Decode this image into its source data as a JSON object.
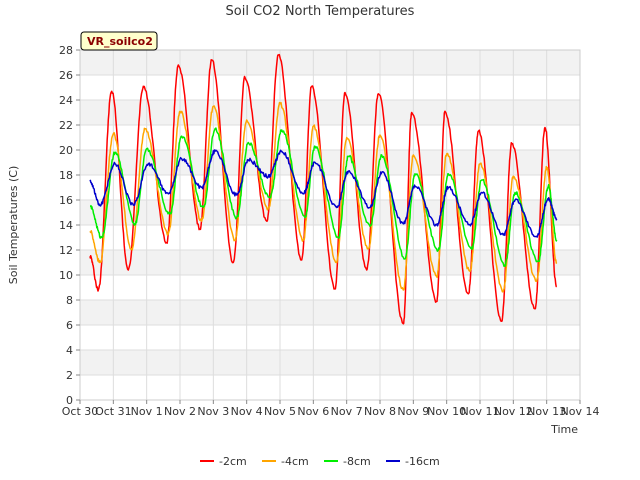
{
  "chart_data": {
    "type": "line",
    "title": "Soil CO2 North Temperatures",
    "xlabel": "Time",
    "ylabel": "Soil Temperatures (C)",
    "site_badge": "VR_soilco2",
    "ylim": [
      0,
      28
    ],
    "yticks": [
      0,
      2,
      4,
      6,
      8,
      10,
      12,
      14,
      16,
      18,
      20,
      22,
      24,
      26,
      28
    ],
    "xlim": [
      0,
      15
    ],
    "xtick_labels": [
      "Oct 30",
      "Oct 31",
      "Nov 1",
      "Nov 2",
      "Nov 3",
      "Nov 4",
      "Nov 5",
      "Nov 6",
      "Nov 7",
      "Nov 8",
      "Nov 9",
      "Nov 10",
      "Nov 11",
      "Nov 12",
      "Nov 13",
      "Nov 14"
    ],
    "grid": true,
    "banded_background": true,
    "legend_position": "bottom-center",
    "series": [
      {
        "name": "-2cm",
        "color": "#ff0000",
        "keypoints": [
          [
            0.3,
            11.5
          ],
          [
            0.55,
            8.8
          ],
          [
            0.95,
            24.7
          ],
          [
            1.45,
            10.4
          ],
          [
            1.9,
            25.1
          ],
          [
            2.6,
            12.6
          ],
          [
            2.95,
            26.8
          ],
          [
            3.6,
            13.7
          ],
          [
            3.95,
            27.2
          ],
          [
            4.6,
            11.0
          ],
          [
            4.95,
            25.8
          ],
          [
            5.6,
            14.3
          ],
          [
            5.95,
            27.6
          ],
          [
            6.65,
            11.2
          ],
          [
            6.95,
            25.1
          ],
          [
            7.65,
            8.9
          ],
          [
            7.95,
            24.6
          ],
          [
            8.6,
            10.4
          ],
          [
            8.95,
            24.5
          ],
          [
            9.7,
            6.1
          ],
          [
            9.95,
            23.0
          ],
          [
            10.7,
            7.9
          ],
          [
            10.95,
            23.1
          ],
          [
            11.65,
            8.5
          ],
          [
            11.95,
            21.5
          ],
          [
            12.65,
            6.3
          ],
          [
            12.95,
            20.5
          ],
          [
            13.65,
            7.3
          ],
          [
            13.95,
            21.8
          ],
          [
            14.3,
            9.1
          ]
        ]
      },
      {
        "name": "-4cm",
        "color": "#ffa500",
        "keypoints": [
          [
            0.3,
            13.5
          ],
          [
            0.6,
            11.0
          ],
          [
            1.0,
            21.3
          ],
          [
            1.55,
            12.1
          ],
          [
            1.95,
            21.7
          ],
          [
            2.65,
            13.3
          ],
          [
            3.0,
            23.1
          ],
          [
            3.65,
            14.3
          ],
          [
            4.0,
            23.5
          ],
          [
            4.65,
            12.8
          ],
          [
            5.0,
            22.4
          ],
          [
            5.65,
            15.3
          ],
          [
            6.0,
            23.7
          ],
          [
            6.7,
            12.8
          ],
          [
            7.0,
            21.9
          ],
          [
            7.7,
            11.0
          ],
          [
            8.0,
            21.0
          ],
          [
            8.65,
            12.1
          ],
          [
            9.0,
            21.2
          ],
          [
            9.7,
            8.8
          ],
          [
            10.0,
            19.6
          ],
          [
            10.7,
            9.9
          ],
          [
            11.0,
            19.7
          ],
          [
            11.7,
            10.3
          ],
          [
            12.0,
            18.9
          ],
          [
            12.7,
            8.7
          ],
          [
            13.0,
            17.9
          ],
          [
            13.7,
            9.5
          ],
          [
            14.0,
            18.6
          ],
          [
            14.3,
            11.0
          ]
        ]
      },
      {
        "name": "-8cm",
        "color": "#00ee00",
        "keypoints": [
          [
            0.3,
            15.5
          ],
          [
            0.65,
            13.0
          ],
          [
            1.05,
            19.8
          ],
          [
            1.65,
            14.1
          ],
          [
            2.0,
            20.1
          ],
          [
            2.7,
            14.9
          ],
          [
            3.05,
            21.1
          ],
          [
            3.7,
            15.4
          ],
          [
            4.05,
            21.7
          ],
          [
            4.7,
            14.6
          ],
          [
            5.05,
            20.6
          ],
          [
            5.7,
            16.2
          ],
          [
            6.05,
            21.6
          ],
          [
            6.75,
            14.6
          ],
          [
            7.05,
            20.3
          ],
          [
            7.75,
            13.0
          ],
          [
            8.05,
            19.5
          ],
          [
            8.7,
            13.9
          ],
          [
            9.05,
            19.6
          ],
          [
            9.75,
            11.3
          ],
          [
            10.05,
            18.1
          ],
          [
            10.75,
            12.0
          ],
          [
            11.05,
            18.1
          ],
          [
            11.75,
            12.1
          ],
          [
            12.05,
            17.6
          ],
          [
            12.75,
            10.8
          ],
          [
            13.05,
            16.6
          ],
          [
            13.75,
            11.1
          ],
          [
            14.05,
            17.1
          ],
          [
            14.3,
            12.8
          ]
        ]
      },
      {
        "name": "-16cm",
        "color": "#0000cc",
        "keypoints": [
          [
            0.3,
            17.5
          ],
          [
            0.6,
            15.6
          ],
          [
            1.05,
            18.9
          ],
          [
            1.6,
            15.6
          ],
          [
            2.05,
            18.9
          ],
          [
            2.65,
            16.5
          ],
          [
            3.05,
            19.3
          ],
          [
            3.65,
            17.0
          ],
          [
            4.05,
            19.9
          ],
          [
            4.7,
            16.4
          ],
          [
            5.05,
            19.2
          ],
          [
            5.65,
            17.9
          ],
          [
            6.05,
            19.9
          ],
          [
            6.7,
            16.5
          ],
          [
            7.05,
            19.0
          ],
          [
            7.7,
            15.4
          ],
          [
            8.05,
            18.3
          ],
          [
            8.7,
            15.4
          ],
          [
            9.05,
            18.2
          ],
          [
            9.7,
            14.1
          ],
          [
            10.05,
            17.1
          ],
          [
            10.7,
            14.0
          ],
          [
            11.05,
            17.0
          ],
          [
            11.7,
            14.0
          ],
          [
            12.05,
            16.6
          ],
          [
            12.7,
            13.2
          ],
          [
            13.05,
            16.0
          ],
          [
            13.7,
            13.1
          ],
          [
            14.05,
            16.1
          ],
          [
            14.3,
            14.5
          ]
        ]
      }
    ]
  }
}
